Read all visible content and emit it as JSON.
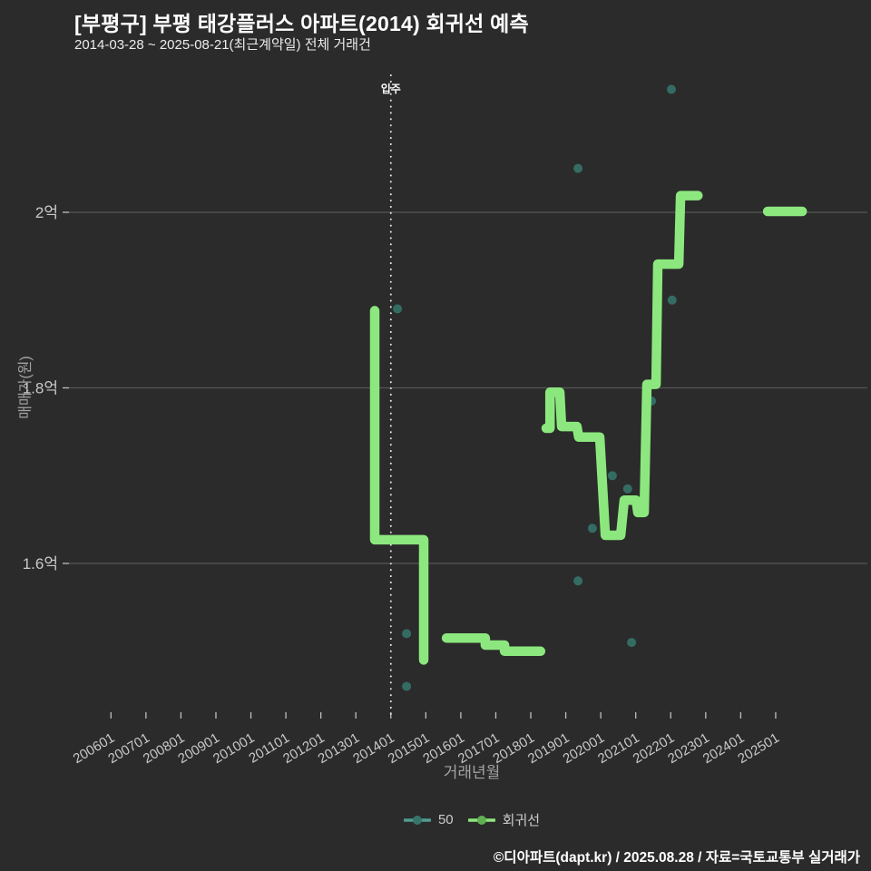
{
  "header": {
    "title": "[부평구] 부평 태강플러스 아파트(2014) 회귀선 예측",
    "subtitle": "2014-03-28 ~ 2025-08-21(최근계약일) 전체 거래건"
  },
  "footer": {
    "credit": "©디아파트(dapt.kr) / 2025.08.28 / 자료=국토교통부 실거래가"
  },
  "chart_data": {
    "type": "line",
    "title": "[부평구] 부평 태강플러스 아파트(2014) 회귀선 예측",
    "subtitle": "2014-03-28 ~ 2025-08-21(최근계약일) 전체 거래건",
    "xlabel": "거래년월",
    "ylabel": "매매가(원)",
    "grid": "horizontal-only",
    "legend_position": "bottom-center",
    "xlim_years": [
      2004.8,
      2027.6
    ],
    "ylim_eok": [
      1.425,
      2.155
    ],
    "x_ticks": [
      "200601",
      "200701",
      "200801",
      "200901",
      "201001",
      "201101",
      "201201",
      "201301",
      "201401",
      "201501",
      "201601",
      "201701",
      "201801",
      "201901",
      "202001",
      "202101",
      "202201",
      "202301",
      "202401",
      "202501"
    ],
    "y_ticks": [
      {
        "value": 1.6,
        "label": "1.6억"
      },
      {
        "value": 1.8,
        "label": "1.8억"
      },
      {
        "value": 2.0,
        "label": "2억"
      }
    ],
    "move_in": {
      "label": "입주",
      "x": 2014.0
    },
    "colors": {
      "background": "#2b2b2b",
      "grid": "#565656",
      "tick": "#bfbfbf",
      "tick_label": "#c9c9c9",
      "move_in_line": "#e8e8e8",
      "scatter": "#35756c",
      "regression": "#8ce87e",
      "legend_scatter_line": "#4f9c92",
      "legend_regression_dot": "#60b153"
    },
    "series": [
      {
        "name": "50",
        "type": "scatter",
        "color": "#35756c",
        "points_year_eok": [
          [
            2014.19,
            1.89
          ],
          [
            2014.45,
            1.52
          ],
          [
            2014.45,
            1.46
          ],
          [
            2019.35,
            2.05
          ],
          [
            2019.35,
            1.58
          ],
          [
            2019.76,
            1.64
          ],
          [
            2020.33,
            1.7
          ],
          [
            2020.77,
            1.685
          ],
          [
            2020.88,
            1.51
          ],
          [
            2021.45,
            1.785
          ],
          [
            2022.02,
            2.14
          ],
          [
            2022.04,
            1.9
          ]
        ]
      },
      {
        "name": "회귀선",
        "type": "line",
        "color": "#8ce87e",
        "segments_year_eok": [
          [
            [
              2013.54,
              1.888
            ],
            [
              2013.54,
              1.627
            ],
            [
              2014.94,
              1.627
            ],
            [
              2014.94,
              1.49
            ]
          ],
          [
            [
              2015.59,
              1.515
            ],
            [
              2016.7,
              1.515
            ],
            [
              2016.7,
              1.507
            ],
            [
              2017.25,
              1.507
            ],
            [
              2017.25,
              1.5
            ],
            [
              2018.28,
              1.5
            ]
          ],
          [
            [
              2018.44,
              1.754
            ],
            [
              2018.55,
              1.754
            ],
            [
              2018.55,
              1.795
            ],
            [
              2018.83,
              1.795
            ],
            [
              2018.88,
              1.756
            ],
            [
              2019.32,
              1.756
            ],
            [
              2019.37,
              1.744
            ],
            [
              2019.97,
              1.744
            ],
            [
              2020.13,
              1.632
            ],
            [
              2020.57,
              1.632
            ],
            [
              2020.67,
              1.672
            ],
            [
              2021.01,
              1.672
            ],
            [
              2021.06,
              1.658
            ],
            [
              2021.24,
              1.658
            ],
            [
              2021.32,
              1.804
            ],
            [
              2021.58,
              1.804
            ],
            [
              2021.63,
              1.941
            ],
            [
              2022.23,
              1.941
            ],
            [
              2022.28,
              2.019
            ],
            [
              2022.78,
              2.019
            ]
          ],
          [
            [
              2024.77,
              2.001
            ],
            [
              2025.76,
              2.001
            ]
          ]
        ]
      }
    ]
  }
}
